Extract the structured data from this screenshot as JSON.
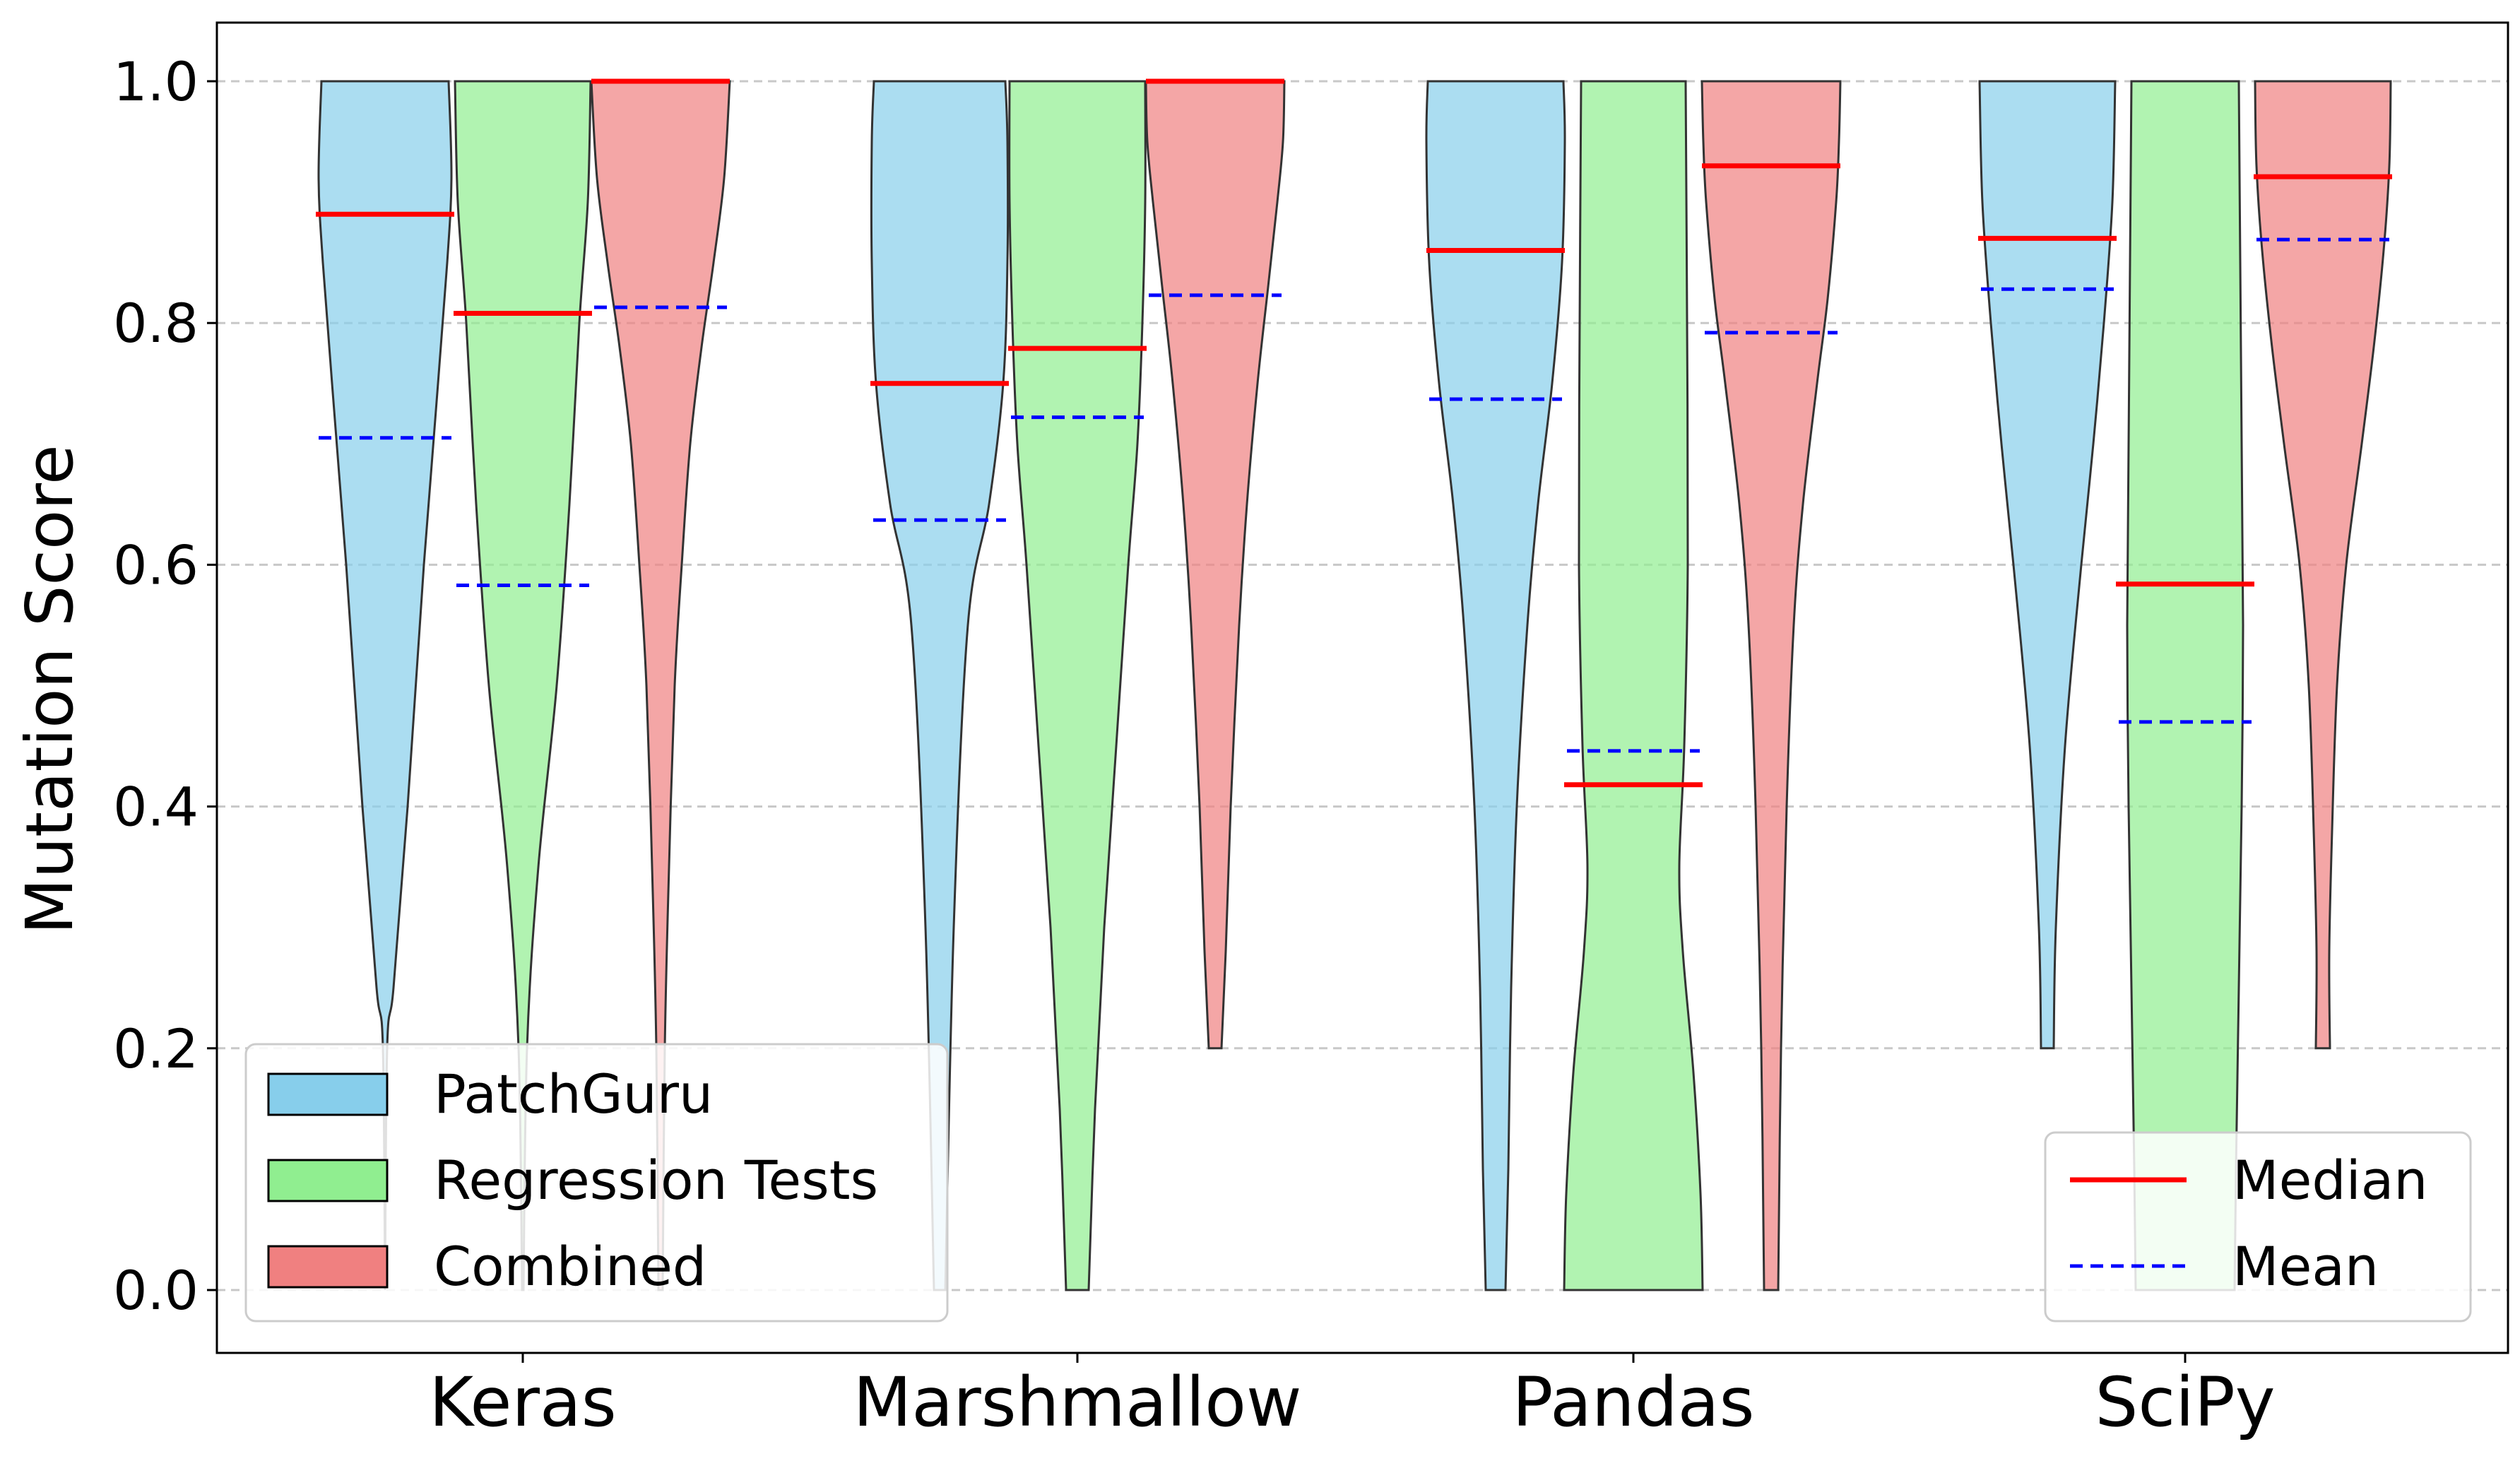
{
  "chart_data": {
    "type": "violin",
    "title": "",
    "xlabel": "",
    "ylabel": "Mutation Score",
    "ylim": [
      -0.05,
      1.05
    ],
    "yticks": [
      "0.0",
      "0.2",
      "0.4",
      "0.6",
      "0.8",
      "1.0"
    ],
    "grid": "y-dashed",
    "categories": [
      "Keras",
      "Marshmallow",
      "Pandas",
      "SciPy"
    ],
    "series": [
      {
        "name": "PatchGuru",
        "color": "#87ceeb",
        "median": [
          0.89,
          0.75,
          0.86,
          0.87
        ],
        "mean": [
          0.705,
          0.637,
          0.737,
          0.828
        ],
        "range": [
          [
            0.0,
            1.0
          ],
          [
            0.0,
            1.0
          ],
          [
            0.0,
            1.0
          ],
          [
            0.2,
            1.0
          ]
        ]
      },
      {
        "name": "Regression Tests",
        "color": "#90ee90",
        "median": [
          0.808,
          0.779,
          0.418,
          0.584
        ],
        "mean": [
          0.583,
          0.722,
          0.446,
          0.47
        ],
        "range": [
          [
            0.0,
            1.0
          ],
          [
            0.0,
            1.0
          ],
          [
            0.0,
            1.0
          ],
          [
            0.0,
            1.0
          ]
        ]
      },
      {
        "name": "Combined",
        "color": "#f08080",
        "median": [
          1.0,
          1.0,
          0.93,
          0.921
        ],
        "mean": [
          0.813,
          0.823,
          0.792,
          0.869
        ],
        "range": [
          [
            0.0,
            1.0
          ],
          [
            0.2,
            1.0
          ],
          [
            0.0,
            1.0
          ],
          [
            0.2,
            1.0
          ]
        ]
      }
    ],
    "legend_groups": {
      "methods": {
        "placement": "bottom-left",
        "entries": [
          "PatchGuru",
          "Regression Tests",
          "Combined"
        ]
      },
      "statistics": {
        "placement": "bottom-right",
        "entries": [
          {
            "label": "Median",
            "color": "#ff0000",
            "style": "solid"
          },
          {
            "label": "Mean",
            "color": "#0000ff",
            "style": "dashed"
          }
        ]
      }
    }
  }
}
